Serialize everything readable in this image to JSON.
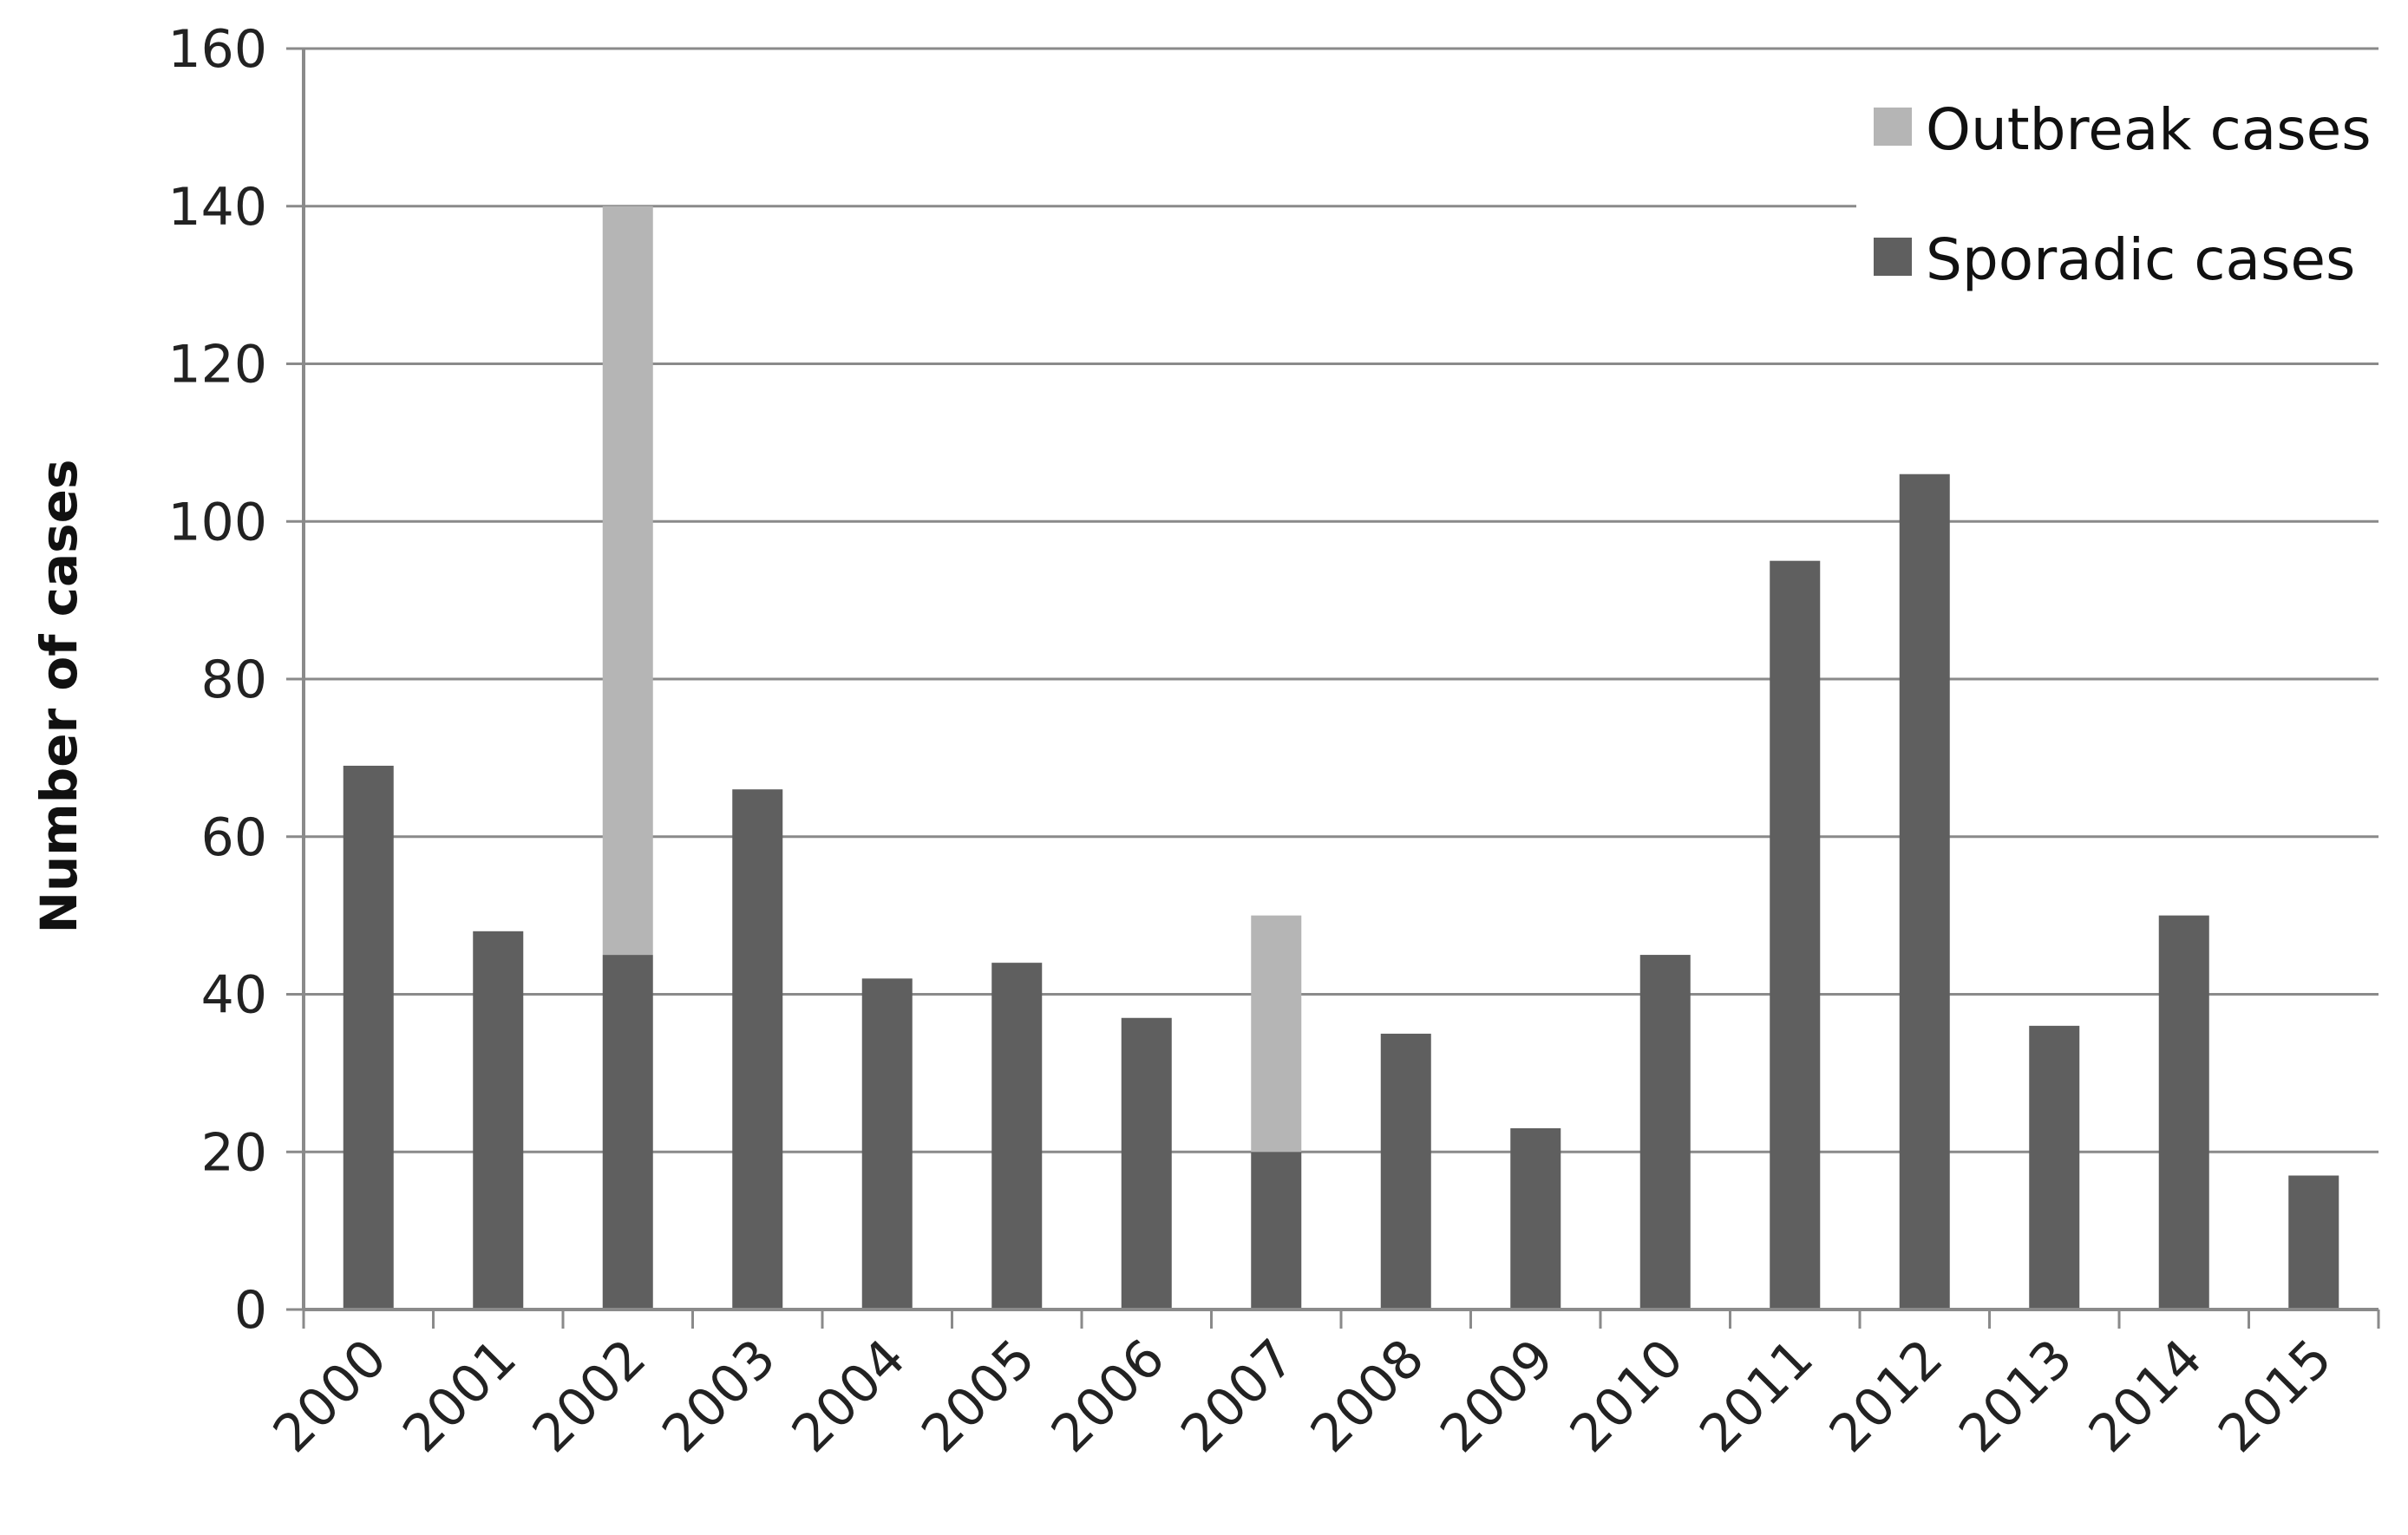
{
  "chart_data": {
    "type": "bar",
    "stacked": true,
    "title": "",
    "xlabel": "",
    "ylabel": "Number of cases",
    "ylim": [
      0,
      160
    ],
    "yticks": [
      0,
      20,
      40,
      60,
      80,
      100,
      120,
      140,
      160
    ],
    "grid": true,
    "legend_position": "top-right",
    "categories": [
      "2000",
      "2001",
      "2002",
      "2003",
      "2004",
      "2005",
      "2006",
      "2007",
      "2008",
      "2009",
      "2010",
      "2011",
      "2012",
      "2013",
      "2014",
      "2015"
    ],
    "series": [
      {
        "name": "Sporadic cases",
        "color": "#5f5f5f",
        "values": [
          69,
          48,
          45,
          66,
          42,
          44,
          37,
          20,
          35,
          23,
          45,
          95,
          106,
          36,
          50,
          17
        ]
      },
      {
        "name": "Outbreak cases",
        "color": "#b5b5b5",
        "values": [
          0,
          0,
          95,
          0,
          0,
          0,
          0,
          30,
          0,
          0,
          0,
          0,
          0,
          0,
          0,
          0
        ]
      }
    ],
    "legend_order": [
      1,
      0
    ]
  }
}
